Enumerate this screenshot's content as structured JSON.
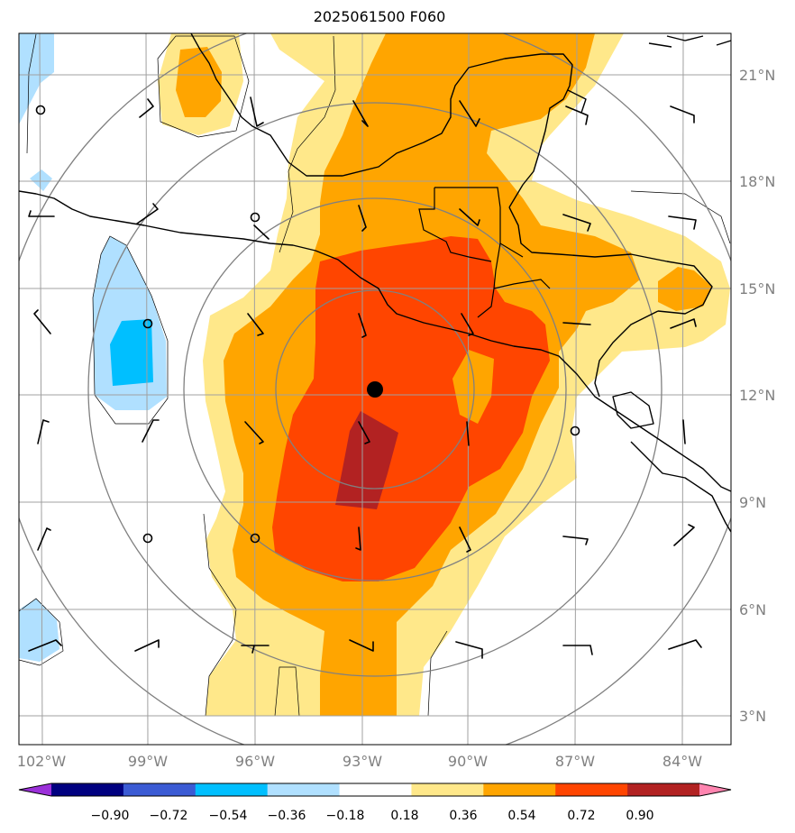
{
  "title": "2025061500 F060",
  "lat_labels": [
    "3°N",
    "6°N",
    "9°N",
    "12°N",
    "15°N",
    "18°N",
    "21°N"
  ],
  "lon_labels": [
    "102°W",
    "99°W",
    "96°W",
    "93°W",
    "90°W",
    "87°W",
    "84°W"
  ],
  "colorbar": {
    "ticks": [
      "−0.90",
      "−0.72",
      "−0.54",
      "−0.36",
      "−0.18",
      "0.18",
      "0.36",
      "0.54",
      "0.72",
      "0.90"
    ],
    "colors": [
      "#9b30d9",
      "#000080",
      "#3b5bd4",
      "#00bfff",
      "#b0e0ff",
      "#ffffff",
      "#ffe88a",
      "#ffa500",
      "#ff4500",
      "#b22222",
      "#ff85b0"
    ]
  },
  "storm_center": {
    "lat": 12.2,
    "lon": -92.6
  },
  "fill_colors": {
    "level1": "#ffe88a",
    "level2": "#ffa500",
    "level3": "#ff4500",
    "level4": "#b22222",
    "neg1": "#b0e0ff",
    "neg2": "#00bfff"
  }
}
